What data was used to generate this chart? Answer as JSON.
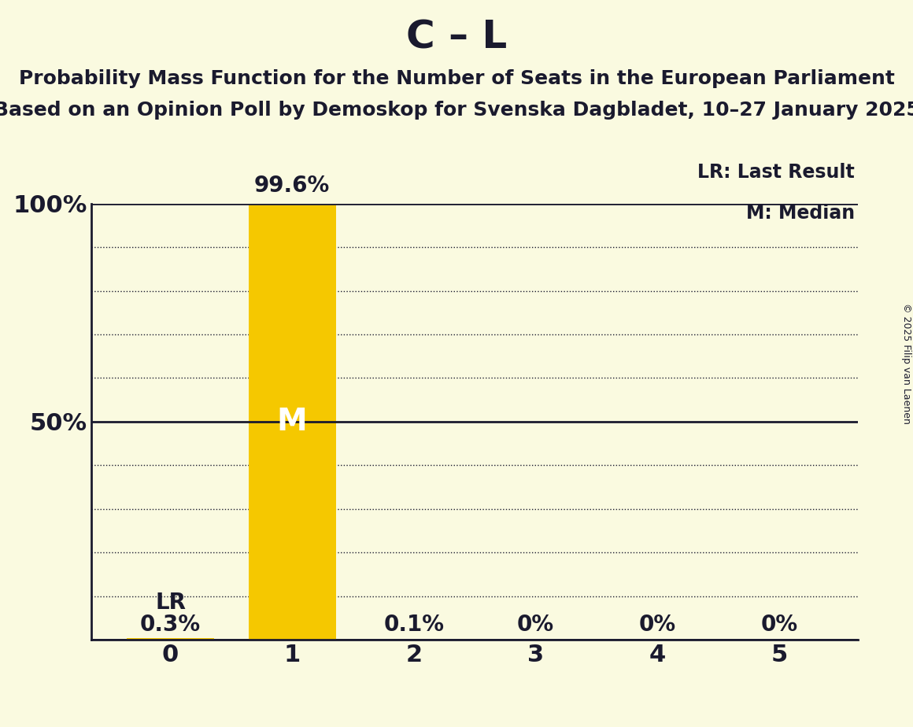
{
  "title": "C – L",
  "subtitle1": "Probability Mass Function for the Number of Seats in the European Parliament",
  "subtitle2": "Based on an Opinion Poll by Demoskop for Svenska Dagbladet, 10–27 January 2025",
  "copyright": "© 2025 Filip van Laenen",
  "categories": [
    0,
    1,
    2,
    3,
    4,
    5
  ],
  "values": [
    0.3,
    99.6,
    0.1,
    0.0,
    0.0,
    0.0
  ],
  "bar_color": "#F5C800",
  "background_color": "#FAFAE0",
  "text_color": "#1a1a2e",
  "label_color_on_bar": "#FFFFFF",
  "lr_bar_index": 0,
  "median_bar_index": 1,
  "lr_label": "LR",
  "median_label": "M",
  "legend_lr": "LR: Last Result",
  "legend_m": "M: Median",
  "ylim": [
    0,
    100
  ],
  "value_labels": [
    "0.3%",
    "99.6%",
    "0.1%",
    "0%",
    "0%",
    "0%"
  ],
  "title_fontsize": 36,
  "subtitle_fontsize": 18,
  "tick_fontsize": 22,
  "label_fontsize": 20,
  "legend_fontsize": 17,
  "bar_width": 0.72,
  "dotted_yticks": [
    10,
    20,
    30,
    40,
    60,
    70,
    80,
    90
  ],
  "solid_yticks": [
    0,
    50,
    100
  ]
}
